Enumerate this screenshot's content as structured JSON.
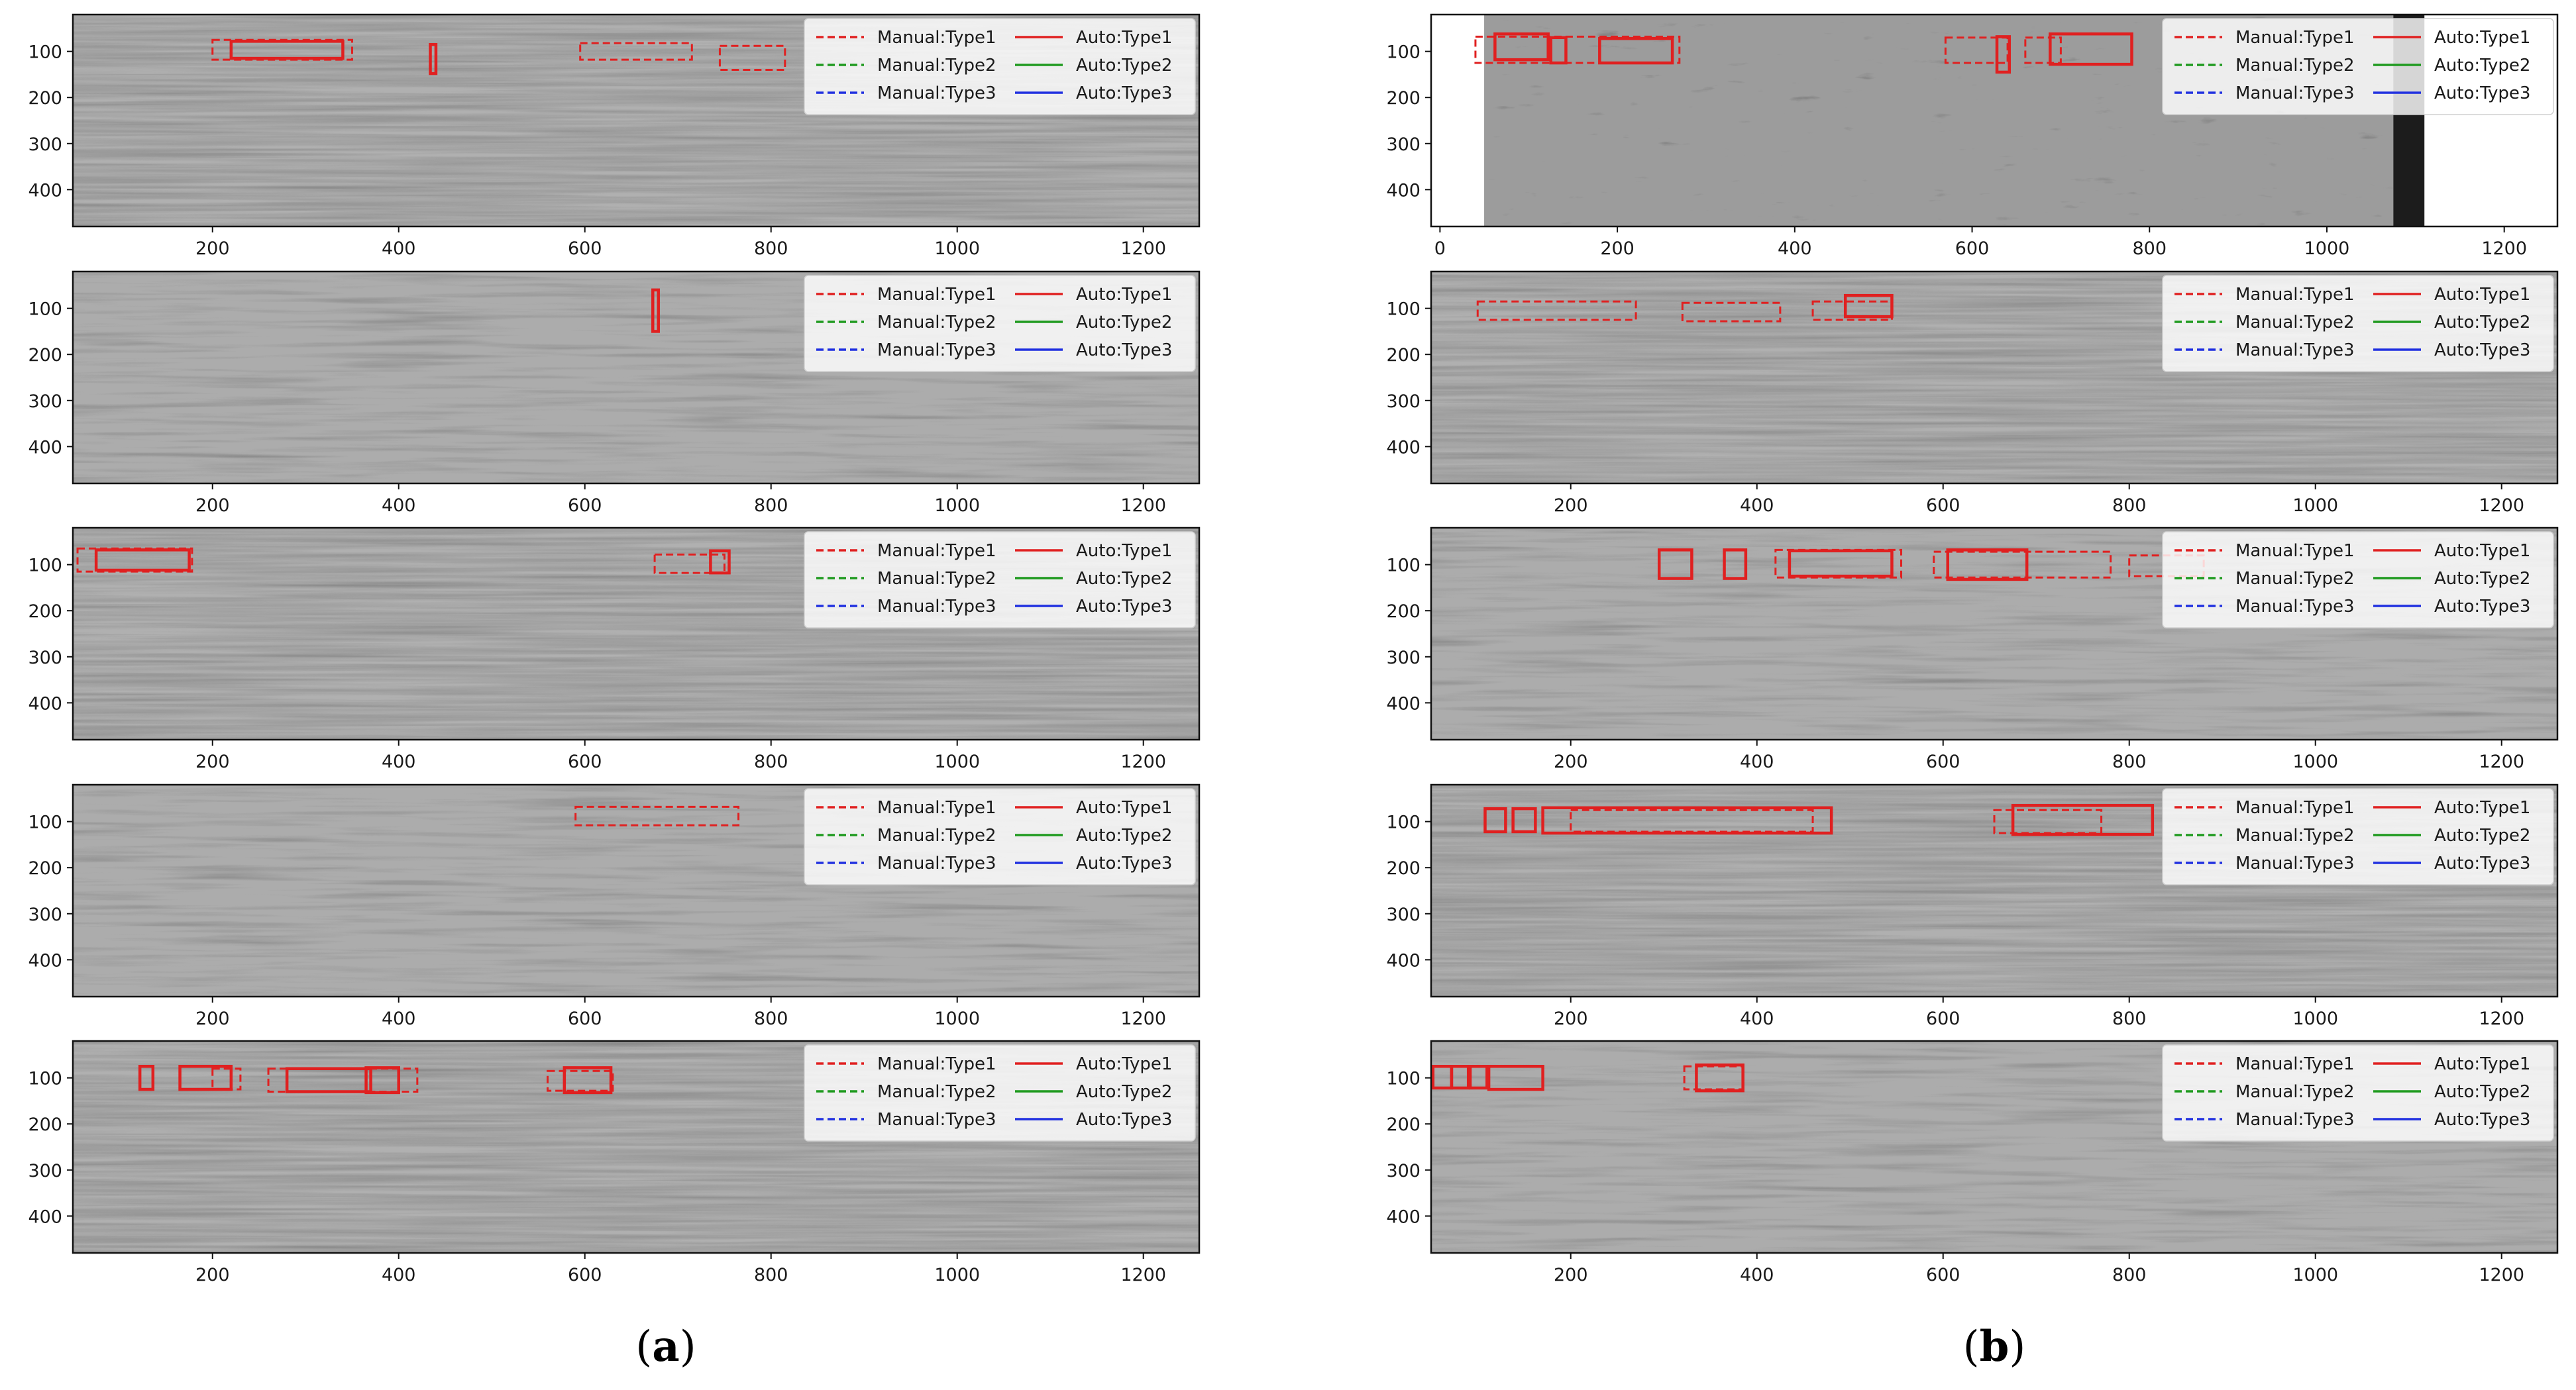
{
  "figure": {
    "captions": [
      {
        "id": "a",
        "open": "(",
        "letter": "a",
        "close": ")"
      },
      {
        "id": "b",
        "open": "(",
        "letter": "b",
        "close": ")"
      }
    ]
  },
  "legend": {
    "entries": [
      {
        "label": "Manual:Type1",
        "style": "dashed",
        "color": "#e02020"
      },
      {
        "label": "Manual:Type2",
        "style": "dashed",
        "color": "#1f9a1f"
      },
      {
        "label": "Manual:Type3",
        "style": "dashed",
        "color": "#2030e0"
      },
      {
        "label": "Auto:Type1",
        "style": "solid",
        "color": "#e02020"
      },
      {
        "label": "Auto:Type2",
        "style": "solid",
        "color": "#1f9a1f"
      },
      {
        "label": "Auto:Type3",
        "style": "solid",
        "color": "#2030e0"
      }
    ]
  },
  "chart_data": [
    {
      "type": "heatmap",
      "column": "a",
      "row": 1,
      "image": "GPR radargram, grayscale",
      "xlim": [
        50,
        1260
      ],
      "ylim": [
        480,
        20
      ],
      "xticks": [
        200,
        400,
        600,
        800,
        1000,
        1200
      ],
      "yticks": [
        100,
        200,
        300,
        400
      ],
      "legend_position": "top-right",
      "boxes": [
        {
          "kind": "manual",
          "class": "Type1",
          "x0": 200,
          "x1": 350,
          "y0": 75,
          "y1": 118
        },
        {
          "kind": "auto",
          "class": "Type1",
          "x0": 220,
          "x1": 340,
          "y0": 78,
          "y1": 115
        },
        {
          "kind": "auto",
          "class": "Type1",
          "x0": 434,
          "x1": 440,
          "y0": 85,
          "y1": 148
        },
        {
          "kind": "manual",
          "class": "Type1",
          "x0": 595,
          "x1": 715,
          "y0": 82,
          "y1": 118
        },
        {
          "kind": "manual",
          "class": "Type1",
          "x0": 745,
          "x1": 815,
          "y0": 88,
          "y1": 140
        }
      ]
    },
    {
      "type": "heatmap",
      "column": "a",
      "row": 2,
      "image": "GPR radargram, grayscale",
      "xlim": [
        50,
        1260
      ],
      "ylim": [
        480,
        20
      ],
      "xticks": [
        200,
        400,
        600,
        800,
        1000,
        1200
      ],
      "yticks": [
        100,
        200,
        300,
        400
      ],
      "legend_position": "top-right",
      "boxes": [
        {
          "kind": "auto",
          "class": "Type1",
          "x0": 673,
          "x1": 679,
          "y0": 60,
          "y1": 150
        }
      ]
    },
    {
      "type": "heatmap",
      "column": "a",
      "row": 3,
      "image": "GPR radargram, grayscale",
      "xlim": [
        50,
        1260
      ],
      "ylim": [
        480,
        20
      ],
      "xticks": [
        200,
        400,
        600,
        800,
        1000,
        1200
      ],
      "yticks": [
        100,
        200,
        300,
        400
      ],
      "legend_position": "top-right",
      "boxes": [
        {
          "kind": "manual",
          "class": "Type1",
          "x0": 55,
          "x1": 178,
          "y0": 65,
          "y1": 115
        },
        {
          "kind": "auto",
          "class": "Type1",
          "x0": 75,
          "x1": 175,
          "y0": 68,
          "y1": 112
        },
        {
          "kind": "manual",
          "class": "Type1",
          "x0": 675,
          "x1": 750,
          "y0": 78,
          "y1": 118
        },
        {
          "kind": "auto",
          "class": "Type1",
          "x0": 735,
          "x1": 755,
          "y0": 70,
          "y1": 118
        }
      ]
    },
    {
      "type": "heatmap",
      "column": "a",
      "row": 4,
      "image": "GPR radargram, grayscale",
      "xlim": [
        50,
        1260
      ],
      "ylim": [
        480,
        20
      ],
      "xticks": [
        200,
        400,
        600,
        800,
        1000,
        1200
      ],
      "yticks": [
        100,
        200,
        300,
        400
      ],
      "legend_position": "top-right",
      "boxes": [
        {
          "kind": "manual",
          "class": "Type1",
          "x0": 590,
          "x1": 765,
          "y0": 68,
          "y1": 108
        }
      ]
    },
    {
      "type": "heatmap",
      "column": "a",
      "row": 5,
      "image": "GPR radargram, grayscale",
      "xlim": [
        50,
        1260
      ],
      "ylim": [
        480,
        20
      ],
      "xticks": [
        200,
        400,
        600,
        800,
        1000,
        1200
      ],
      "yticks": [
        100,
        200,
        300,
        400
      ],
      "legend_position": "top-right",
      "boxes": [
        {
          "kind": "auto",
          "class": "Type1",
          "x0": 122,
          "x1": 136,
          "y0": 75,
          "y1": 125
        },
        {
          "kind": "auto",
          "class": "Type1",
          "x0": 165,
          "x1": 220,
          "y0": 75,
          "y1": 125
        },
        {
          "kind": "manual",
          "class": "Type1",
          "x0": 200,
          "x1": 230,
          "y0": 80,
          "y1": 125
        },
        {
          "kind": "manual",
          "class": "Type1",
          "x0": 260,
          "x1": 420,
          "y0": 80,
          "y1": 130
        },
        {
          "kind": "auto",
          "class": "Type1",
          "x0": 280,
          "x1": 370,
          "y0": 80,
          "y1": 130
        },
        {
          "kind": "auto",
          "class": "Type1",
          "x0": 365,
          "x1": 400,
          "y0": 78,
          "y1": 132
        },
        {
          "kind": "manual",
          "class": "Type1",
          "x0": 560,
          "x1": 630,
          "y0": 85,
          "y1": 128
        },
        {
          "kind": "auto",
          "class": "Type1",
          "x0": 578,
          "x1": 628,
          "y0": 78,
          "y1": 132
        }
      ]
    },
    {
      "type": "heatmap",
      "column": "b",
      "row": 1,
      "image": "GPR radargram, grayscale",
      "xlim": [
        -10,
        1260
      ],
      "ylim": [
        480,
        20
      ],
      "xticks": [
        0,
        200,
        400,
        600,
        800,
        1000,
        1200
      ],
      "yticks": [
        100,
        200,
        300,
        400
      ],
      "legend_position": "top-right",
      "boxes": [
        {
          "kind": "manual",
          "class": "Type1",
          "x0": 40,
          "x1": 270,
          "y0": 68,
          "y1": 125
        },
        {
          "kind": "auto",
          "class": "Type1",
          "x0": 62,
          "x1": 122,
          "y0": 62,
          "y1": 118
        },
        {
          "kind": "auto",
          "class": "Type1",
          "x0": 125,
          "x1": 142,
          "y0": 70,
          "y1": 125
        },
        {
          "kind": "auto",
          "class": "Type1",
          "x0": 180,
          "x1": 262,
          "y0": 72,
          "y1": 125
        },
        {
          "kind": "manual",
          "class": "Type1",
          "x0": 570,
          "x1": 640,
          "y0": 70,
          "y1": 125
        },
        {
          "kind": "auto",
          "class": "Type1",
          "x0": 628,
          "x1": 642,
          "y0": 68,
          "y1": 145
        },
        {
          "kind": "manual",
          "class": "Type1",
          "x0": 660,
          "x1": 700,
          "y0": 70,
          "y1": 125
        },
        {
          "kind": "auto",
          "class": "Type1",
          "x0": 688,
          "x1": 780,
          "y0": 62,
          "y1": 128
        }
      ]
    },
    {
      "type": "heatmap",
      "column": "b",
      "row": 2,
      "image": "GPR radargram, grayscale",
      "xlim": [
        50,
        1260
      ],
      "ylim": [
        480,
        20
      ],
      "xticks": [
        200,
        400,
        600,
        800,
        1000,
        1200
      ],
      "yticks": [
        100,
        200,
        300,
        400
      ],
      "legend_position": "top-right",
      "boxes": [
        {
          "kind": "manual",
          "class": "Type1",
          "x0": 100,
          "x1": 270,
          "y0": 85,
          "y1": 125
        },
        {
          "kind": "manual",
          "class": "Type1",
          "x0": 320,
          "x1": 425,
          "y0": 88,
          "y1": 128
        },
        {
          "kind": "manual",
          "class": "Type1",
          "x0": 460,
          "x1": 545,
          "y0": 85,
          "y1": 125
        },
        {
          "kind": "auto",
          "class": "Type1",
          "x0": 495,
          "x1": 545,
          "y0": 72,
          "y1": 118
        }
      ]
    },
    {
      "type": "heatmap",
      "column": "b",
      "row": 3,
      "image": "GPR radargram, grayscale",
      "xlim": [
        50,
        1260
      ],
      "ylim": [
        480,
        20
      ],
      "xticks": [
        200,
        400,
        600,
        800,
        1000,
        1200
      ],
      "yticks": [
        100,
        200,
        300,
        400
      ],
      "legend_position": "top-right",
      "boxes": [
        {
          "kind": "auto",
          "class": "Type1",
          "x0": 295,
          "x1": 330,
          "y0": 68,
          "y1": 130
        },
        {
          "kind": "auto",
          "class": "Type1",
          "x0": 365,
          "x1": 388,
          "y0": 68,
          "y1": 130
        },
        {
          "kind": "manual",
          "class": "Type1",
          "x0": 420,
          "x1": 555,
          "y0": 68,
          "y1": 128
        },
        {
          "kind": "auto",
          "class": "Type1",
          "x0": 435,
          "x1": 545,
          "y0": 70,
          "y1": 125
        },
        {
          "kind": "manual",
          "class": "Type1",
          "x0": 590,
          "x1": 780,
          "y0": 72,
          "y1": 128
        },
        {
          "kind": "auto",
          "class": "Type1",
          "x0": 605,
          "x1": 690,
          "y0": 68,
          "y1": 132
        },
        {
          "kind": "manual",
          "class": "Type1",
          "x0": 800,
          "x1": 880,
          "y0": 80,
          "y1": 125
        }
      ]
    },
    {
      "type": "heatmap",
      "column": "b",
      "row": 4,
      "image": "GPR radargram, grayscale",
      "xlim": [
        50,
        1260
      ],
      "ylim": [
        480,
        20
      ],
      "xticks": [
        200,
        400,
        600,
        800,
        1000,
        1200
      ],
      "yticks": [
        100,
        200,
        300,
        400
      ],
      "legend_position": "top-right",
      "boxes": [
        {
          "kind": "auto",
          "class": "Type1",
          "x0": 108,
          "x1": 130,
          "y0": 72,
          "y1": 122
        },
        {
          "kind": "auto",
          "class": "Type1",
          "x0": 138,
          "x1": 162,
          "y0": 72,
          "y1": 122
        },
        {
          "kind": "auto",
          "class": "Type1",
          "x0": 170,
          "x1": 480,
          "y0": 70,
          "y1": 125
        },
        {
          "kind": "manual",
          "class": "Type1",
          "x0": 200,
          "x1": 460,
          "y0": 75,
          "y1": 122
        },
        {
          "kind": "manual",
          "class": "Type1",
          "x0": 655,
          "x1": 770,
          "y0": 75,
          "y1": 125
        },
        {
          "kind": "auto",
          "class": "Type1",
          "x0": 675,
          "x1": 825,
          "y0": 65,
          "y1": 128
        }
      ]
    },
    {
      "type": "heatmap",
      "column": "b",
      "row": 5,
      "image": "GPR radargram, grayscale",
      "xlim": [
        50,
        1260
      ],
      "ylim": [
        480,
        20
      ],
      "xticks": [
        200,
        400,
        600,
        800,
        1000,
        1200
      ],
      "yticks": [
        100,
        200,
        300,
        400
      ],
      "legend_position": "top-right",
      "boxes": [
        {
          "kind": "auto",
          "class": "Type1",
          "x0": 52,
          "x1": 72,
          "y0": 75,
          "y1": 122
        },
        {
          "kind": "auto",
          "class": "Type1",
          "x0": 72,
          "x1": 90,
          "y0": 75,
          "y1": 122
        },
        {
          "kind": "auto",
          "class": "Type1",
          "x0": 92,
          "x1": 110,
          "y0": 75,
          "y1": 122
        },
        {
          "kind": "auto",
          "class": "Type1",
          "x0": 112,
          "x1": 170,
          "y0": 75,
          "y1": 125
        },
        {
          "kind": "manual",
          "class": "Type1",
          "x0": 322,
          "x1": 385,
          "y0": 75,
          "y1": 125
        },
        {
          "kind": "auto",
          "class": "Type1",
          "x0": 335,
          "x1": 385,
          "y0": 72,
          "y1": 128
        }
      ]
    }
  ]
}
